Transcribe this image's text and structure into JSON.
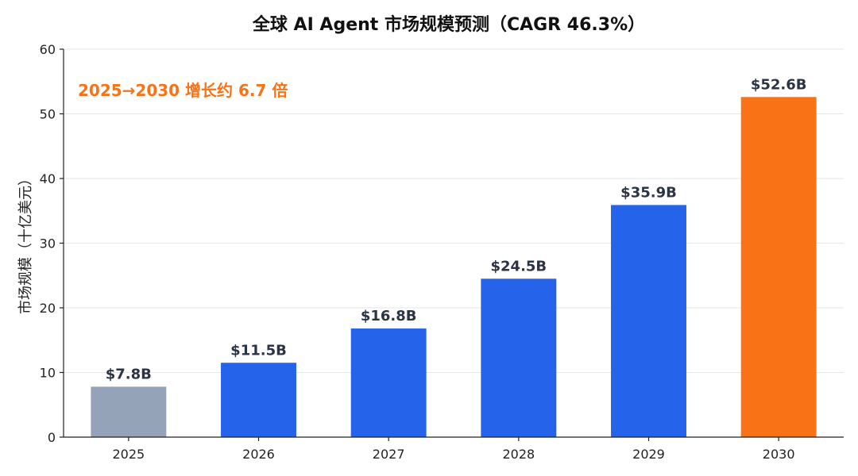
{
  "chart_data": {
    "type": "bar",
    "title": "全球 AI Agent 市场规模预测（CAGR 46.3%）",
    "ylabel": "市场规模（十亿美元）",
    "xlabel": "",
    "categories": [
      "2025",
      "2026",
      "2027",
      "2028",
      "2029",
      "2030"
    ],
    "values": [
      7.8,
      11.5,
      16.8,
      24.5,
      35.9,
      52.6
    ],
    "data_labels": [
      "$7.8B",
      "$11.5B",
      "$16.8B",
      "$24.5B",
      "$35.9B",
      "$52.6B"
    ],
    "bar_colors": [
      "#94a3b8",
      "#2563eb",
      "#2563eb",
      "#2563eb",
      "#2563eb",
      "#f97316"
    ],
    "ylim": [
      0,
      60
    ],
    "yticks": [
      0,
      10,
      20,
      30,
      40,
      50,
      60
    ],
    "grid": true,
    "annotation": {
      "text": "2025→2030 增长约 6.7 倍",
      "color": "#f97316"
    }
  }
}
